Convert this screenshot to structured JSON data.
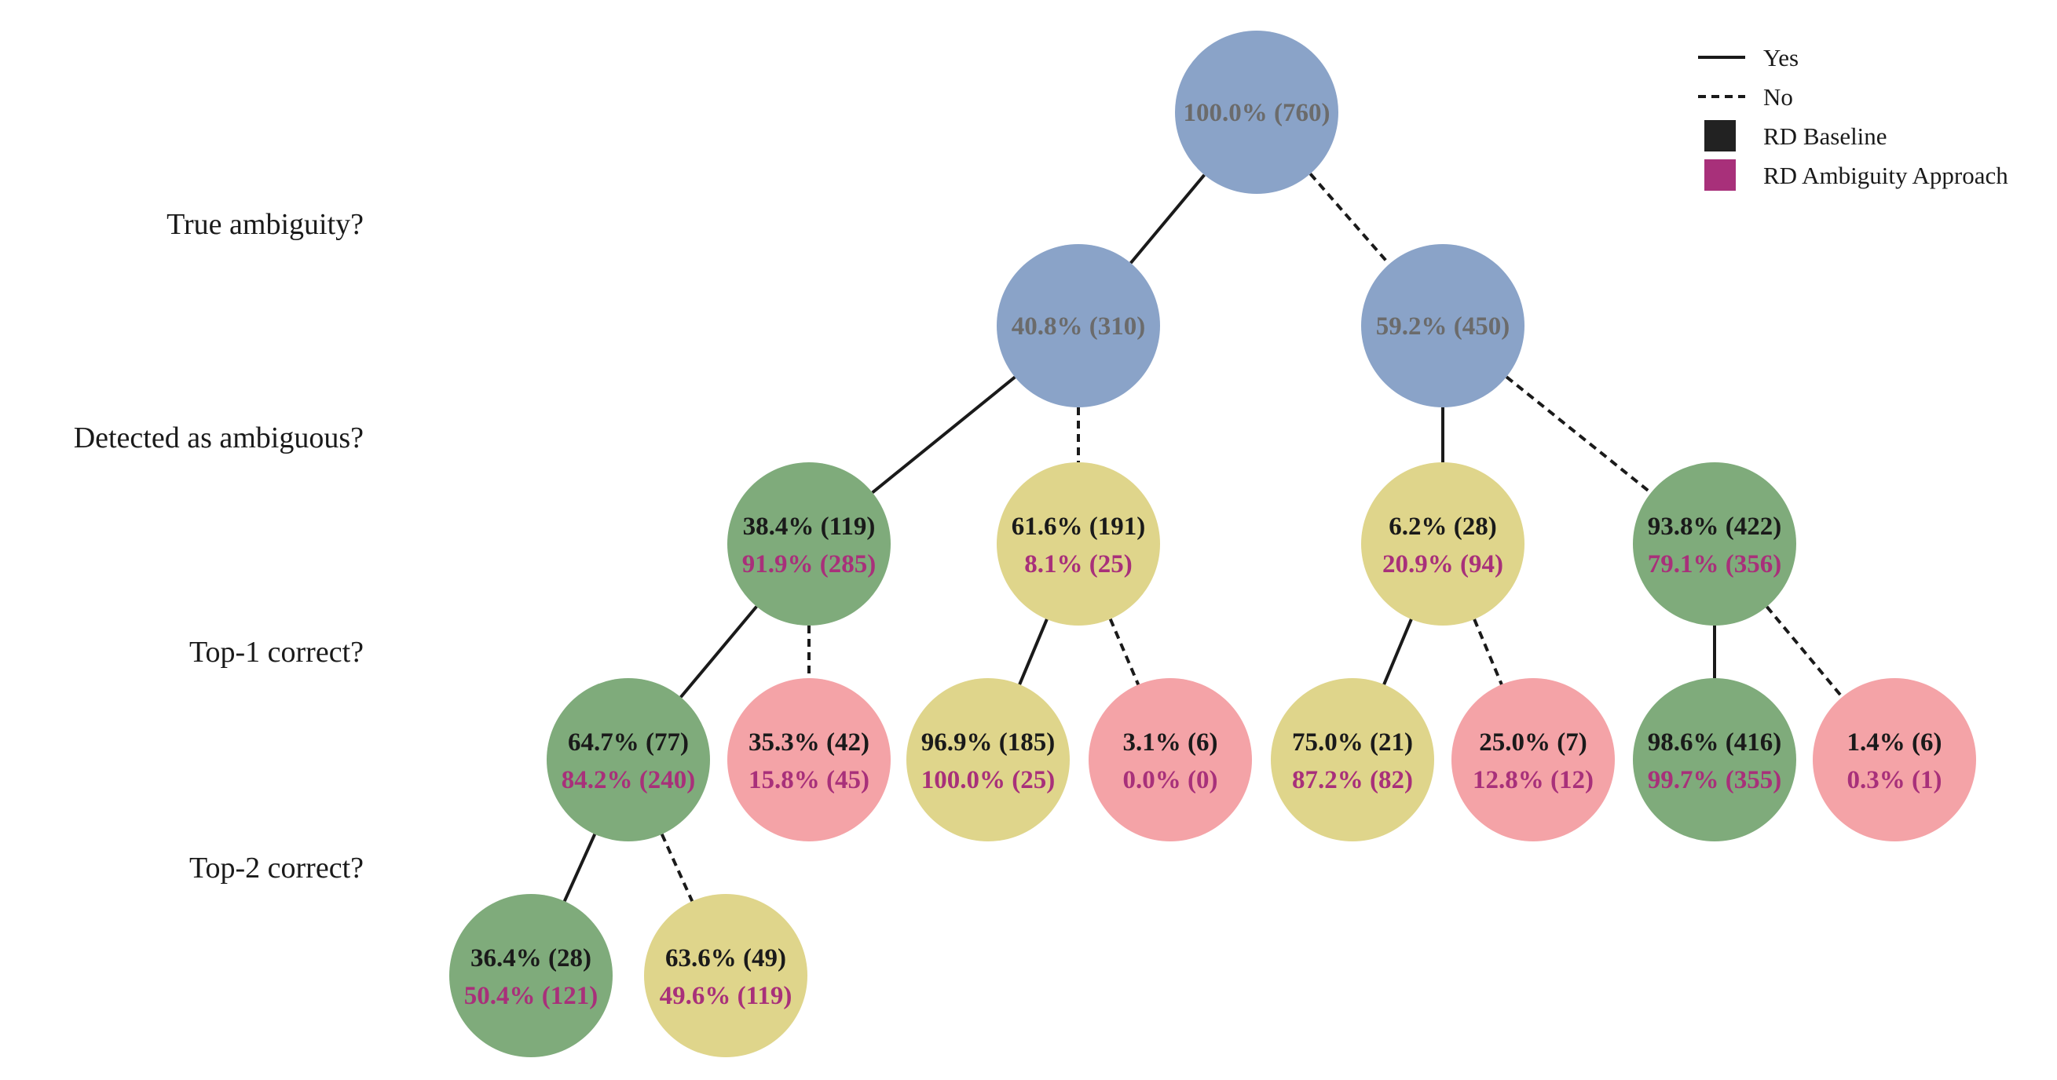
{
  "colors": {
    "blue": "#8aa3c8",
    "green": "#7fab7b",
    "yellow": "#dfd58b",
    "pink": "#f4a3a7",
    "baseline_text": "#1a1a1a",
    "ambiguity_text": "#a8307a",
    "root_text": "#6b6b6b",
    "edge": "#1a1a1a"
  },
  "questions": [
    {
      "id": "q1",
      "text": "True ambiguity?"
    },
    {
      "id": "q2",
      "text": "Detected as ambiguous?"
    },
    {
      "id": "q3",
      "text": "Top-1 correct?"
    },
    {
      "id": "q4",
      "text": "Top-2 correct?"
    }
  ],
  "legend": {
    "yes": "Yes",
    "no": "No",
    "baseline": "RD Baseline",
    "ambiguity": "RD Ambiguity Approach"
  },
  "nodes": [
    {
      "id": "root",
      "fill": "blue",
      "line1": "100.0% (760)",
      "line2": ""
    },
    {
      "id": "amb",
      "fill": "blue",
      "line1": "40.8% (310)",
      "line2": ""
    },
    {
      "id": "notamb",
      "fill": "blue",
      "line1": "59.2% (450)",
      "line2": ""
    },
    {
      "id": "amb-det",
      "fill": "green",
      "line1": "38.4% (119)",
      "line2": "91.9% (285)"
    },
    {
      "id": "amb-notdet",
      "fill": "yellow",
      "line1": "61.6% (191)",
      "line2": "8.1% (25)"
    },
    {
      "id": "notamb-det",
      "fill": "yellow",
      "line1": "6.2% (28)",
      "line2": "20.9% (94)"
    },
    {
      "id": "notamb-notdet",
      "fill": "green",
      "line1": "93.8% (422)",
      "line2": "79.1% (356)"
    },
    {
      "id": "a-d-top1",
      "fill": "green",
      "line1": "64.7% (77)",
      "line2": "84.2% (240)"
    },
    {
      "id": "a-d-nottop1",
      "fill": "pink",
      "line1": "35.3% (42)",
      "line2": "15.8% (45)"
    },
    {
      "id": "a-nd-top1",
      "fill": "yellow",
      "line1": "96.9% (185)",
      "line2": "100.0% (25)"
    },
    {
      "id": "a-nd-nottop1",
      "fill": "pink",
      "line1": "3.1% (6)",
      "line2": "0.0% (0)"
    },
    {
      "id": "na-d-top1",
      "fill": "yellow",
      "line1": "75.0% (21)",
      "line2": "87.2% (82)"
    },
    {
      "id": "na-d-nottop1",
      "fill": "pink",
      "line1": "25.0% (7)",
      "line2": "12.8% (12)"
    },
    {
      "id": "na-nd-top1",
      "fill": "green",
      "line1": "98.6% (416)",
      "line2": "99.7% (355)"
    },
    {
      "id": "na-nd-nottop1",
      "fill": "pink",
      "line1": "1.4% (6)",
      "line2": "0.3% (1)"
    },
    {
      "id": "a-d-t1-top2",
      "fill": "green",
      "line1": "36.4% (28)",
      "line2": "50.4% (121)"
    },
    {
      "id": "a-d-t1-nottop2",
      "fill": "yellow",
      "line1": "63.6% (49)",
      "line2": "49.6% (119)"
    }
  ],
  "edges": [
    {
      "from": "root",
      "to": "amb",
      "answer": "yes"
    },
    {
      "from": "root",
      "to": "notamb",
      "answer": "no"
    },
    {
      "from": "amb",
      "to": "amb-det",
      "answer": "yes"
    },
    {
      "from": "amb",
      "to": "amb-notdet",
      "answer": "no"
    },
    {
      "from": "notamb",
      "to": "notamb-det",
      "answer": "yes"
    },
    {
      "from": "notamb",
      "to": "notamb-notdet",
      "answer": "no"
    },
    {
      "from": "amb-det",
      "to": "a-d-top1",
      "answer": "yes"
    },
    {
      "from": "amb-det",
      "to": "a-d-nottop1",
      "answer": "no"
    },
    {
      "from": "amb-notdet",
      "to": "a-nd-top1",
      "answer": "yes"
    },
    {
      "from": "amb-notdet",
      "to": "a-nd-nottop1",
      "answer": "no"
    },
    {
      "from": "notamb-det",
      "to": "na-d-top1",
      "answer": "yes"
    },
    {
      "from": "notamb-det",
      "to": "na-d-nottop1",
      "answer": "no"
    },
    {
      "from": "notamb-notdet",
      "to": "na-nd-top1",
      "answer": "yes"
    },
    {
      "from": "notamb-notdet",
      "to": "na-nd-nottop1",
      "answer": "no"
    },
    {
      "from": "a-d-top1",
      "to": "a-d-t1-top2",
      "answer": "yes"
    },
    {
      "from": "a-d-top1",
      "to": "a-d-t1-nottop2",
      "answer": "no"
    }
  ]
}
